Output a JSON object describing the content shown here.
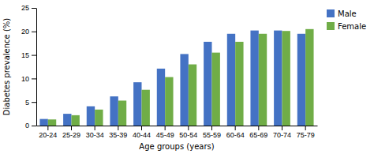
{
  "chart_data": {
    "type": "bar",
    "xlabel": "Age groups (years)",
    "ylabel": "Diabetes prevalence (%)",
    "categories": [
      "20-24",
      "25-29",
      "30-34",
      "35-39",
      "40-44",
      "45-49",
      "50-54",
      "55-59",
      "60-64",
      "65-69",
      "70-74",
      "75-79"
    ],
    "series": [
      {
        "name": "Male",
        "color": "#4472C4",
        "values": [
          1.4,
          2.5,
          4.1,
          6.2,
          9.2,
          12.1,
          15.2,
          17.8,
          19.5,
          20.2,
          20.2,
          19.5
        ]
      },
      {
        "name": "Female",
        "color": "#70AD47",
        "values": [
          1.3,
          2.2,
          3.4,
          5.3,
          7.6,
          10.3,
          13.0,
          15.5,
          17.8,
          19.5,
          20.1,
          20.5
        ]
      }
    ],
    "ylim": [
      0,
      25
    ],
    "yticks": [
      0,
      5,
      10,
      15,
      20,
      25
    ],
    "grid": false,
    "legend": "right"
  }
}
